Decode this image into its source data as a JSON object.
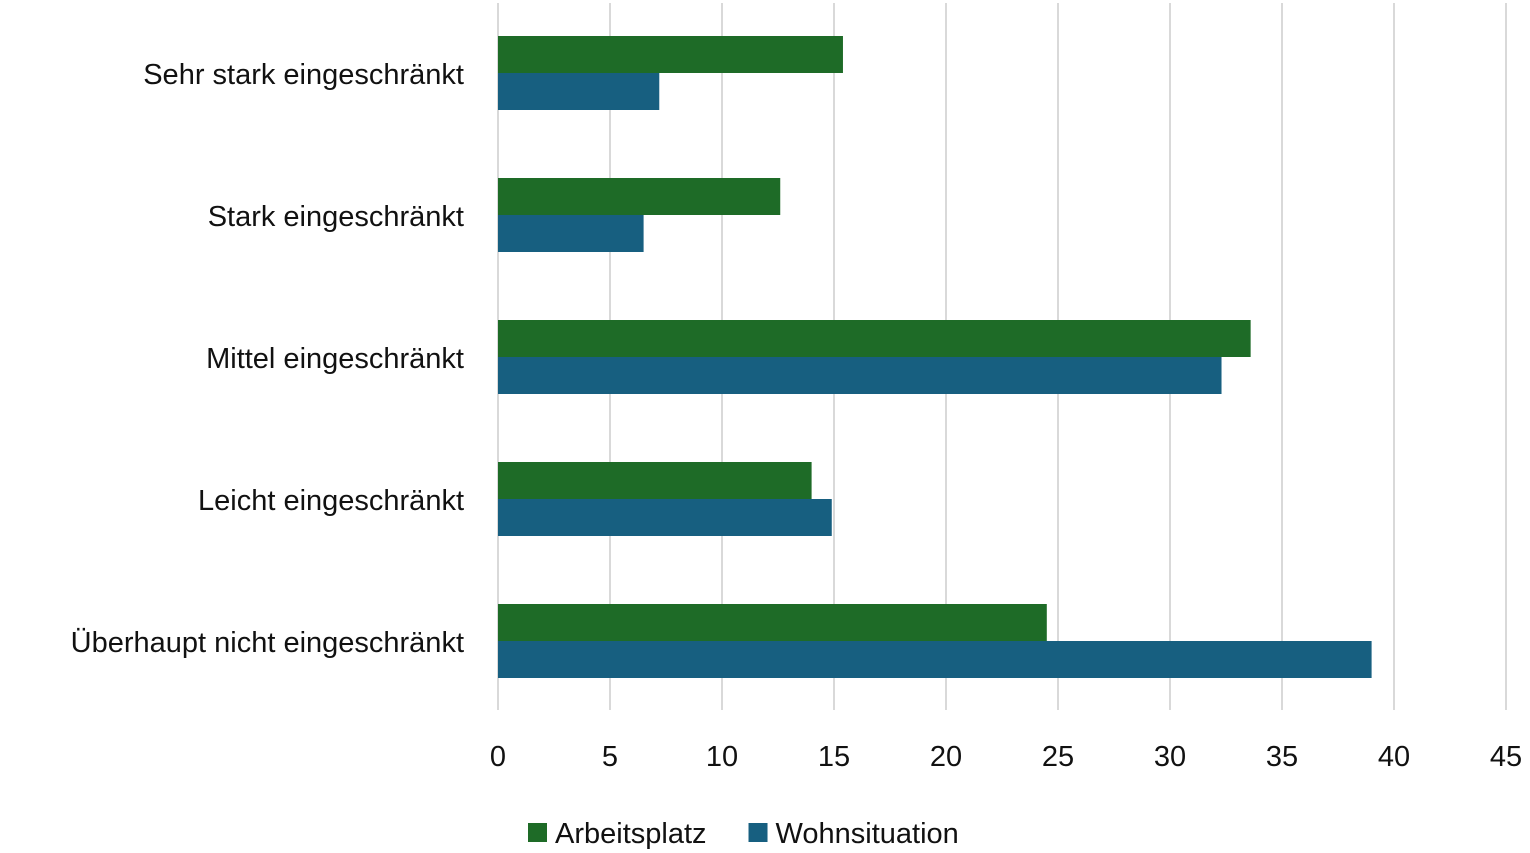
{
  "chart_data": {
    "type": "bar",
    "orientation": "horizontal",
    "categories": [
      "Sehr stark eingeschränkt",
      "Stark eingeschränkt",
      "Mittel eingeschränkt",
      "Leicht eingeschränkt",
      "Überhaupt nicht eingeschränkt"
    ],
    "series": [
      {
        "name": "Arbeitsplatz",
        "color": "#1e6b27",
        "values": [
          15.4,
          12.6,
          33.6,
          14.0,
          24.5
        ]
      },
      {
        "name": "Wohnsituation",
        "color": "#175f80",
        "values": [
          7.2,
          6.5,
          32.3,
          14.9,
          39.0
        ]
      }
    ],
    "xlim": [
      0,
      45
    ],
    "xticks": [
      "0",
      "5",
      "10",
      "15",
      "20",
      "25",
      "30",
      "35",
      "40",
      "45"
    ],
    "title": "",
    "xlabel": "",
    "ylabel": "",
    "grid": "vertical",
    "legend_position": "bottom"
  }
}
